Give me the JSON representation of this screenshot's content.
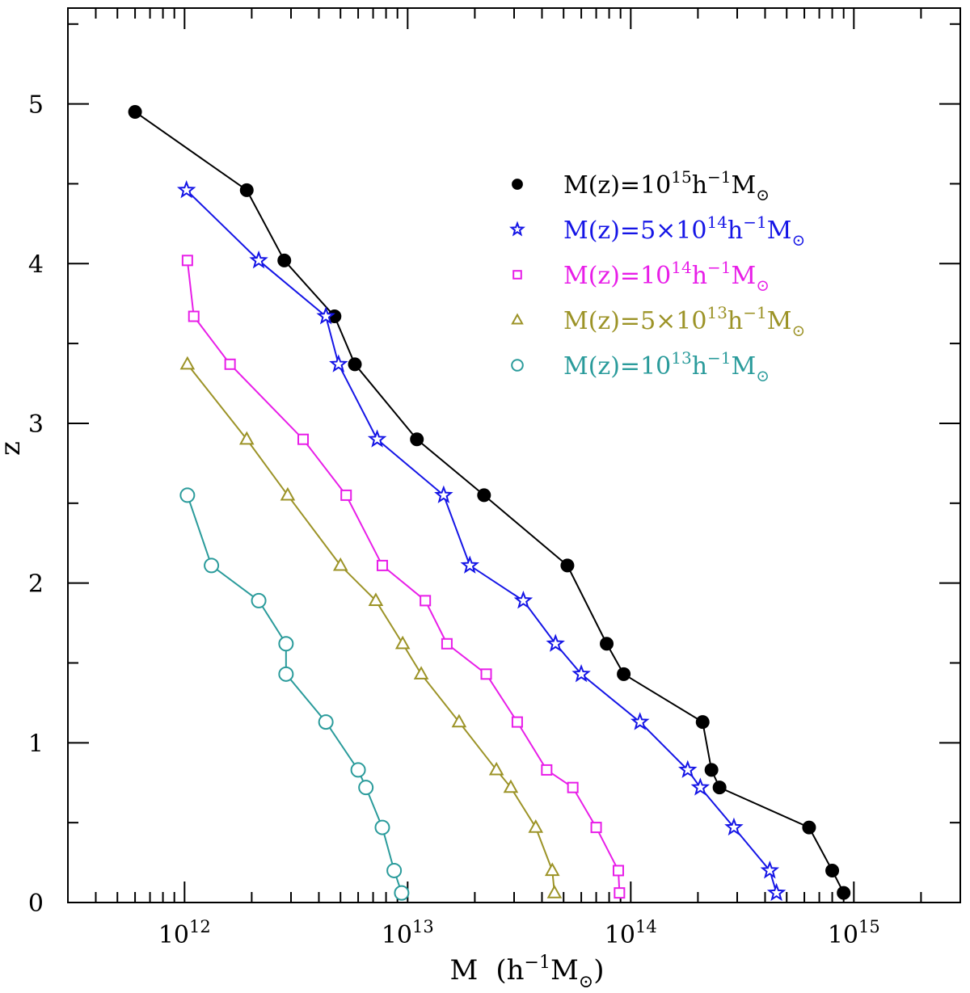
{
  "chart_data": {
    "type": "line",
    "xscale": "log",
    "xlim": [
      300000000000.0,
      3000000000000000.0
    ],
    "ylim": [
      0,
      5.6
    ],
    "xlabel_main": "M",
    "xlabel_units": "(h",
    "xlabel_exp": "−1",
    "xlabel_msun": "M",
    "xlabel_sub": "⊙",
    "xlabel_close": ")",
    "ylabel": "z",
    "x_tick_labels": [
      {
        "x": 1000000000000.0,
        "base": "10",
        "exp": "12"
      },
      {
        "x": 10000000000000.0,
        "base": "10",
        "exp": "13"
      },
      {
        "x": 100000000000000.0,
        "base": "10",
        "exp": "14"
      },
      {
        "x": 1000000000000000.0,
        "base": "10",
        "exp": "15"
      }
    ],
    "y_ticks": [
      0,
      1,
      2,
      3,
      4,
      5
    ],
    "y_tick_labels": [
      "0",
      "1",
      "2",
      "3",
      "4",
      "5"
    ],
    "legend_position": "top-right",
    "series": [
      {
        "name": "M(z)=10¹⁵h⁻¹M⊙",
        "legend": {
          "pre": "M(z)=10",
          "exp": "15",
          "mid": "h",
          "exp2": "−1",
          "post": "M",
          "sub": "⊙"
        },
        "color": "#000000",
        "marker": "filled-circle",
        "x": [
          900000000000000.0,
          800000000000000.0,
          630000000000000.0,
          250000000000000.0,
          230000000000000.0,
          210000000000000.0,
          93000000000000.0,
          78000000000000.0,
          52000000000000.0,
          22000000000000.0,
          11000000000000.0,
          5800000000000.0,
          4700000000000.0,
          2800000000000.0,
          1900000000000.0,
          600000000000.0
        ],
        "y": [
          0.06,
          0.2,
          0.47,
          0.72,
          0.83,
          1.13,
          1.43,
          1.62,
          2.11,
          2.55,
          2.9,
          3.37,
          3.67,
          4.02,
          4.46,
          4.95
        ]
      },
      {
        "name": "M(z)=5×10¹⁴h⁻¹M⊙",
        "legend": {
          "pre": "M(z)=5×10",
          "exp": "14",
          "mid": "h",
          "exp2": "−1",
          "post": "M",
          "sub": "⊙"
        },
        "color": "#1515e6",
        "marker": "star",
        "x": [
          450000000000000.0,
          420000000000000.0,
          290000000000000.0,
          205000000000000.0,
          180000000000000.0,
          110000000000000.0,
          60000000000000.0,
          46000000000000.0,
          33000000000000.0,
          19000000000000.0,
          14500000000000.0,
          7300000000000.0,
          4900000000000.0,
          4300000000000.0,
          2150000000000.0,
          1020000000000.0
        ],
        "y": [
          0.06,
          0.2,
          0.47,
          0.72,
          0.83,
          1.13,
          1.43,
          1.62,
          1.89,
          2.11,
          2.55,
          2.9,
          3.37,
          3.67,
          4.02,
          4.46
        ]
      },
      {
        "name": "M(z)=10¹⁴h⁻¹M⊙",
        "legend": {
          "pre": "M(z)=10",
          "exp": "14",
          "mid": "h",
          "exp2": "−1",
          "post": "M",
          "sub": "⊙"
        },
        "color": "#e81ee8",
        "marker": "square",
        "x": [
          89000000000000.0,
          88000000000000.0,
          70000000000000.0,
          55000000000000.0,
          42000000000000.0,
          31000000000000.0,
          22500000000000.0,
          15000000000000.0,
          12000000000000.0,
          7700000000000.0,
          5300000000000.0,
          3400000000000.0,
          1600000000000.0,
          1100000000000.0,
          1030000000000.0
        ],
        "y": [
          0.06,
          0.2,
          0.47,
          0.72,
          0.83,
          1.13,
          1.43,
          1.62,
          1.89,
          2.11,
          2.55,
          2.9,
          3.37,
          3.67,
          4.02
        ]
      },
      {
        "name": "M(z)=5×10¹³h⁻¹M⊙",
        "legend": {
          "pre": "M(z)=5×10",
          "exp": "13",
          "mid": "h",
          "exp2": "−1",
          "post": "M",
          "sub": "⊙"
        },
        "color": "#9c9327",
        "marker": "triangle",
        "x": [
          45500000000000.0,
          44500000000000.0,
          37500000000000.0,
          29000000000000.0,
          25000000000000.0,
          17000000000000.0,
          11500000000000.0,
          9500000000000.0,
          7200000000000.0,
          5000000000000.0,
          2900000000000.0,
          1900000000000.0,
          1030000000000.0
        ],
        "y": [
          0.06,
          0.2,
          0.47,
          0.72,
          0.83,
          1.13,
          1.43,
          1.62,
          1.89,
          2.11,
          2.55,
          2.9,
          3.37
        ]
      },
      {
        "name": "M(z)=10¹³h⁻¹M⊙",
        "legend": {
          "pre": "M(z)=10",
          "exp": "13",
          "mid": "h",
          "exp2": "−1",
          "post": "M",
          "sub": "⊙"
        },
        "color": "#2a9b9b",
        "marker": "open-circle",
        "x": [
          9400000000000.0,
          8700000000000.0,
          7700000000000.0,
          6500000000000.0,
          6000000000000.0,
          4300000000000.0,
          2850000000000.0,
          2850000000000.0,
          2150000000000.0,
          1320000000000.0,
          1030000000000.0
        ],
        "y": [
          0.06,
          0.2,
          0.47,
          0.72,
          0.83,
          1.13,
          1.43,
          1.62,
          1.89,
          2.11,
          2.55
        ]
      }
    ]
  }
}
